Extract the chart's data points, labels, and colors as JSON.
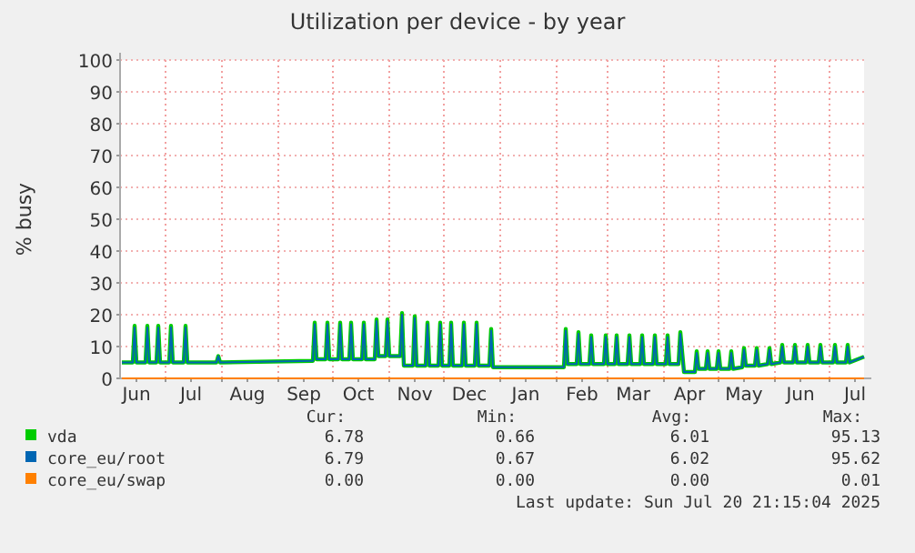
{
  "chart_data": {
    "type": "line",
    "title": "Utilization per device - by year",
    "ylabel": "% busy",
    "xlim": [
      "2024-06-06",
      "2025-07-20"
    ],
    "xticks": [
      {
        "value": "2024-06-15",
        "label": "Jun"
      },
      {
        "value": "2024-07-01",
        "label": null
      },
      {
        "value": "2024-07-15",
        "label": "Jul"
      },
      {
        "value": "2024-08-01",
        "label": null
      },
      {
        "value": "2024-08-15",
        "label": "Aug"
      },
      {
        "value": "2024-09-01",
        "label": null
      },
      {
        "value": "2024-09-15",
        "label": "Sep"
      },
      {
        "value": "2024-10-01",
        "label": null
      },
      {
        "value": "2024-10-15",
        "label": "Oct"
      },
      {
        "value": "2024-11-01",
        "label": null
      },
      {
        "value": "2024-11-15",
        "label": "Nov"
      },
      {
        "value": "2024-12-01",
        "label": null
      },
      {
        "value": "2024-12-15",
        "label": "Dec"
      },
      {
        "value": "2025-01-01",
        "label": null
      },
      {
        "value": "2025-01-15",
        "label": "Jan"
      },
      {
        "value": "2025-02-01",
        "label": null
      },
      {
        "value": "2025-02-15",
        "label": "Feb"
      },
      {
        "value": "2025-03-01",
        "label": null
      },
      {
        "value": "2025-03-15",
        "label": "Mar"
      },
      {
        "value": "2025-04-01",
        "label": null
      },
      {
        "value": "2025-04-15",
        "label": "Apr"
      },
      {
        "value": "2025-05-01",
        "label": null
      },
      {
        "value": "2025-05-15",
        "label": "May"
      },
      {
        "value": "2025-06-01",
        "label": null
      },
      {
        "value": "2025-06-15",
        "label": "Jun"
      },
      {
        "value": "2025-07-01",
        "label": null
      },
      {
        "value": "2025-07-15",
        "label": "Jul"
      }
    ],
    "ylim": [
      0,
      100
    ],
    "yticks": [
      0,
      10,
      20,
      30,
      40,
      50,
      60,
      70,
      80,
      90,
      100
    ],
    "grid": true,
    "legend": "bottom left",
    "x": [
      "2024-06-07",
      "2024-06-13",
      "2024-06-14",
      "2024-06-15",
      "2024-06-20",
      "2024-06-21",
      "2024-06-22",
      "2024-06-26",
      "2024-06-27",
      "2024-06-28",
      "2024-07-03",
      "2024-07-04",
      "2024-07-05",
      "2024-07-11",
      "2024-07-12",
      "2024-07-13",
      "2024-07-29",
      "2024-07-30",
      "2024-07-31",
      "2024-09-20",
      "2024-09-21",
      "2024-09-22",
      "2024-09-27",
      "2024-09-28",
      "2024-09-29",
      "2024-10-04",
      "2024-10-05",
      "2024-10-06",
      "2024-10-10",
      "2024-10-11",
      "2024-10-12",
      "2024-10-17",
      "2024-10-18",
      "2024-10-19",
      "2024-10-24",
      "2024-10-25",
      "2024-10-26",
      "2024-10-30",
      "2024-10-31",
      "2024-11-01",
      "2024-11-07",
      "2024-11-08",
      "2024-11-09",
      "2024-11-14",
      "2024-11-15",
      "2024-11-16",
      "2024-11-21",
      "2024-11-22",
      "2024-11-23",
      "2024-11-28",
      "2024-11-29",
      "2024-11-30",
      "2024-12-04",
      "2024-12-05",
      "2024-12-06",
      "2024-12-11",
      "2024-12-12",
      "2024-12-13",
      "2024-12-18",
      "2024-12-19",
      "2024-12-20",
      "2024-12-26",
      "2024-12-27",
      "2024-12-28",
      "2025-01-15",
      "2025-02-05",
      "2025-02-06",
      "2025-02-07",
      "2025-02-12",
      "2025-02-13",
      "2025-02-14",
      "2025-02-19",
      "2025-02-20",
      "2025-02-21",
      "2025-02-27",
      "2025-02-28",
      "2025-03-01",
      "2025-03-05",
      "2025-03-06",
      "2025-03-07",
      "2025-03-12",
      "2025-03-13",
      "2025-03-14",
      "2025-03-19",
      "2025-03-20",
      "2025-03-21",
      "2025-03-26",
      "2025-03-27",
      "2025-03-28",
      "2025-04-02",
      "2025-04-03",
      "2025-04-04",
      "2025-04-09",
      "2025-04-10",
      "2025-04-12",
      "2025-04-18",
      "2025-04-19",
      "2025-04-20",
      "2025-04-24",
      "2025-04-25",
      "2025-04-26",
      "2025-04-30",
      "2025-05-01",
      "2025-05-02",
      "2025-05-07",
      "2025-05-08",
      "2025-05-09",
      "2025-05-14",
      "2025-05-15",
      "2025-05-16",
      "2025-05-21",
      "2025-05-22",
      "2025-05-23",
      "2025-05-28",
      "2025-05-29",
      "2025-05-30",
      "2025-06-04",
      "2025-06-05",
      "2025-06-06",
      "2025-06-11",
      "2025-06-12",
      "2025-06-13",
      "2025-06-18",
      "2025-06-19",
      "2025-06-20",
      "2025-06-25",
      "2025-06-26",
      "2025-06-27",
      "2025-07-03",
      "2025-07-04",
      "2025-07-05",
      "2025-07-10",
      "2025-07-11",
      "2025-07-12",
      "2025-07-20"
    ],
    "series": [
      {
        "name": "vda",
        "color": "#00cc00",
        "values": [
          5,
          5,
          16.5,
          5,
          5,
          16.5,
          5,
          5,
          16.5,
          5,
          5,
          16.5,
          5,
          5,
          16.5,
          5,
          5,
          7,
          5,
          5.5,
          17.5,
          6,
          6,
          17.5,
          6,
          6,
          17.5,
          6,
          6,
          17.5,
          6,
          6,
          17.5,
          6,
          6,
          18.5,
          7,
          7,
          18.5,
          7,
          7,
          20.5,
          4,
          4,
          19.5,
          4,
          4,
          17.5,
          4,
          4,
          17.5,
          4,
          4,
          17.5,
          4,
          4,
          17.5,
          4,
          4,
          17.5,
          4,
          4,
          15.5,
          3.5,
          3.5,
          3.5,
          15.5,
          4.5,
          4.5,
          14.5,
          4.5,
          4.5,
          13.5,
          4.5,
          4.5,
          13.5,
          4.5,
          4.5,
          13.5,
          4.5,
          4.5,
          13.5,
          4.5,
          4.5,
          13.5,
          4.5,
          4.5,
          13.5,
          4.5,
          4.5,
          13.5,
          4.5,
          4.5,
          14.5,
          2,
          2,
          8.5,
          3,
          3,
          8.5,
          3,
          3,
          8.5,
          3,
          3,
          8.5,
          3,
          3.5,
          9.5,
          4,
          4,
          9.5,
          4,
          4.5,
          9.5,
          4.5,
          5,
          10.5,
          5,
          5,
          10.5,
          5,
          5,
          10.5,
          5,
          5,
          10.5,
          5,
          5,
          10.5,
          5,
          5,
          10.5,
          5,
          6.8
        ]
      },
      {
        "name": "core_eu/root",
        "color": "#0066b3",
        "values": [
          5,
          5,
          16,
          5,
          5,
          16,
          5,
          5,
          16,
          5,
          5,
          16,
          5,
          5,
          16,
          5,
          5,
          7,
          5,
          5.5,
          17,
          6,
          6,
          17,
          6,
          6,
          17,
          6,
          6,
          17,
          6,
          6,
          17,
          6,
          6,
          18,
          7,
          7,
          18,
          7,
          7,
          20,
          4,
          4,
          19,
          4,
          4,
          17,
          4,
          4,
          17,
          4,
          4,
          17,
          4,
          4,
          17,
          4,
          4,
          17,
          4,
          4,
          15,
          3.5,
          3.5,
          3.5,
          15,
          4.5,
          4.5,
          14,
          4.5,
          4.5,
          13,
          4.5,
          4.5,
          13,
          4.5,
          4.5,
          13,
          4.5,
          4.5,
          13,
          4.5,
          4.5,
          13,
          4.5,
          4.5,
          13,
          4.5,
          4.5,
          13,
          4.5,
          4.5,
          14,
          2,
          2,
          8,
          3,
          3,
          8,
          3,
          3,
          8,
          3,
          3,
          8,
          3,
          3.5,
          9,
          4,
          4,
          9,
          4,
          4.5,
          9,
          4.5,
          5,
          10,
          5,
          5,
          10,
          5,
          5,
          10,
          5,
          5,
          10,
          5,
          5,
          10,
          5,
          5,
          10,
          5,
          6.8
        ]
      },
      {
        "name": "core_eu/swap",
        "color": "#ff8000",
        "x": [
          "2024-06-07",
          "2025-07-20"
        ],
        "values": [
          0,
          0
        ]
      }
    ],
    "annotations": [
      "Cur:",
      "Min:",
      "Avg:",
      "Max:",
      "6.78",
      "0.66",
      "6.01",
      "95.13",
      "6.79",
      "0.67",
      "6.02",
      "95.62",
      "0.00",
      "0.00",
      "0.00",
      "0.01",
      "Last update: Sun Jul 20 21:15:04 2025"
    ]
  }
}
